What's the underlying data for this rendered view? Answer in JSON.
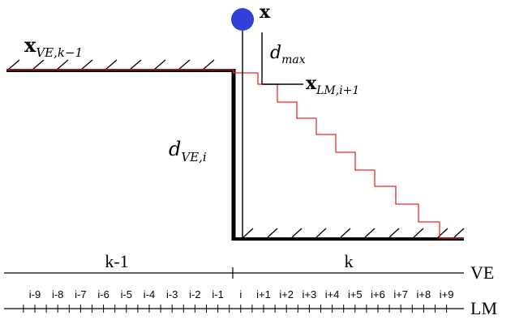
{
  "colors": {
    "ground": "#000000",
    "path": "#e8282a",
    "point": "#3040d8"
  },
  "labels": {
    "point": "x",
    "ve_prev": {
      "base": "x",
      "sub": "VE,k−1"
    },
    "lm_next": {
      "base": "x",
      "sub": "LM,i+1"
    },
    "dmax": {
      "base": "d",
      "sub": "max"
    },
    "dve": {
      "base": "d",
      "sub": "VE,i"
    }
  },
  "axes": {
    "ve": {
      "name": "VE",
      "segments": [
        "k-1",
        "k"
      ]
    },
    "lm": {
      "name": "LM",
      "ticks": [
        "i-9",
        "i-8",
        "i-7",
        "i-6",
        "i-5",
        "i-4",
        "i-3",
        "i-2",
        "i-1",
        "i",
        "i+1",
        "i+2",
        "i+3",
        "i+4",
        "i+5",
        "i+6",
        "i+7",
        "i+8",
        "i+9"
      ]
    }
  },
  "icons": {
    "point": "filled-circle",
    "hatch": "ground-hatch-lines"
  }
}
